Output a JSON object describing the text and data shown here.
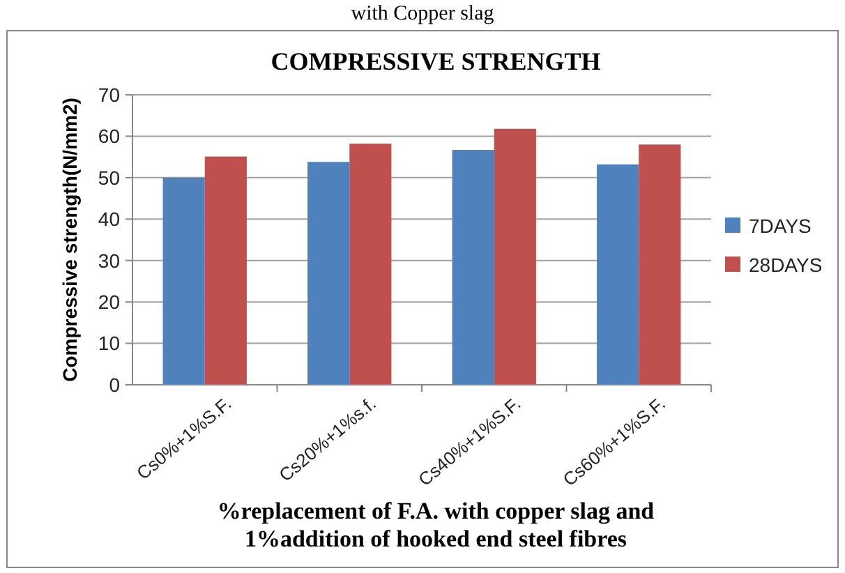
{
  "chart_data": {
    "type": "bar",
    "title": "COMPRESSIVE STRENGTH",
    "xlabel": "%replacement of F.A. with copper slag and\n1%addition of hooked end steel fibres",
    "ylabel": "Compressive strength(N/mm2)",
    "annotations": [
      "with Copper slag"
    ],
    "categories": [
      "Cs0%+1%S.F.",
      "Cs20%+1%s.f.",
      "Cs40%+1%S.F.",
      "Cs60%+1%S.F."
    ],
    "series": [
      {
        "name": "7DAYS",
        "color": "#4f81bd",
        "values": [
          50,
          53.8,
          56.7,
          53.2
        ]
      },
      {
        "name": "28DAYS",
        "color": "#c0504d",
        "values": [
          55.1,
          58.2,
          61.8,
          58
        ]
      }
    ],
    "ylim": [
      0,
      70
    ],
    "yticks": [
      0,
      10,
      20,
      30,
      40,
      50,
      60,
      70
    ],
    "grid": "y",
    "legend": "right"
  }
}
